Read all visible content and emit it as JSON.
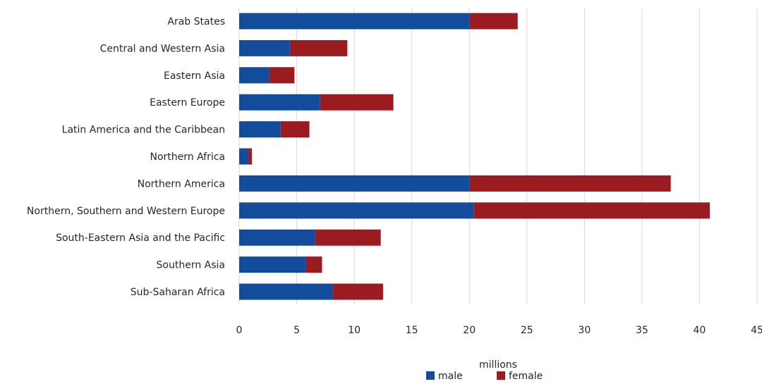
{
  "chart_data": {
    "type": "bar",
    "orientation": "horizontal",
    "stacked": true,
    "categories": [
      "Arab States",
      "Central and Western Asia",
      "Eastern Asia",
      "Eastern Europe",
      "Latin America and the Caribbean",
      "Northern Africa",
      "Northern America",
      "Northern, Southern and Western Europe",
      "South-Eastern Asia and the Pacific",
      "Southern Asia",
      "Sub-Saharan Africa"
    ],
    "series": [
      {
        "name": "male",
        "color": "#144c9c",
        "values": [
          20.0,
          4.4,
          2.6,
          7.0,
          3.6,
          0.8,
          20.0,
          20.4,
          6.6,
          5.8,
          8.1
        ]
      },
      {
        "name": "female",
        "color": "#9a1b20",
        "values": [
          4.2,
          5.0,
          2.2,
          6.4,
          2.5,
          0.3,
          17.5,
          20.5,
          5.7,
          1.4,
          4.4
        ]
      }
    ],
    "xlabel": "millions",
    "ylabel": "",
    "xlim": [
      0,
      45
    ],
    "xticks": [
      0,
      5,
      10,
      15,
      20,
      25,
      30,
      35,
      40,
      45
    ],
    "grid": true,
    "legend_position": "bottom"
  }
}
